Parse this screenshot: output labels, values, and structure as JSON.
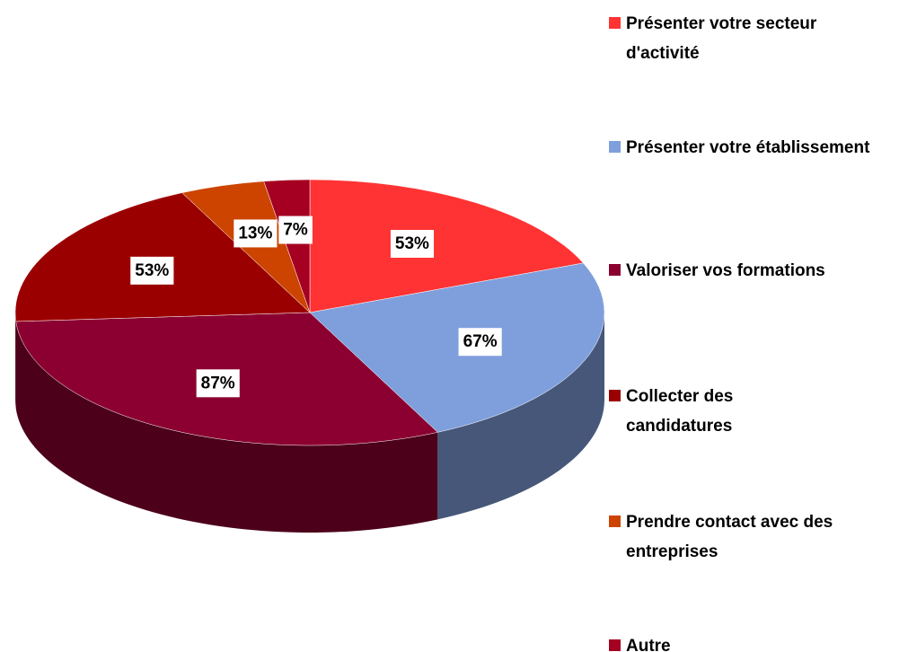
{
  "chart_data": {
    "type": "pie3d",
    "categories": [
      "Présenter votre secteur d'activité",
      "Présenter votre établissement",
      "Valoriser vos formations",
      "Collecter des candidatures",
      "Prendre contact avec des entreprises",
      "Autre"
    ],
    "values": [
      53,
      67,
      87,
      53,
      13,
      7
    ],
    "value_labels": [
      "53%",
      "67%",
      "87%",
      "53%",
      "13%",
      "7%"
    ],
    "colors": [
      "#ff3333",
      "#7f9fdc",
      "#8b0030",
      "#9b0000",
      "#cc4400",
      "#a50021"
    ],
    "legend": "right"
  }
}
